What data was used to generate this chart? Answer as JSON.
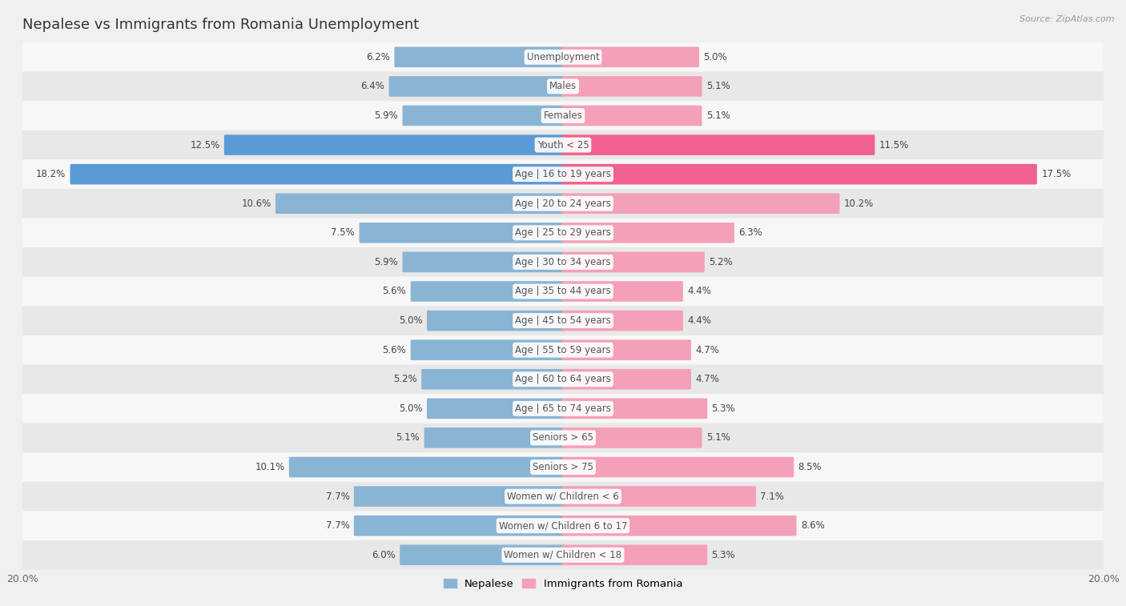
{
  "title": "Nepalese vs Immigrants from Romania Unemployment",
  "source": "Source: ZipAtlas.com",
  "categories": [
    "Unemployment",
    "Males",
    "Females",
    "Youth < 25",
    "Age | 16 to 19 years",
    "Age | 20 to 24 years",
    "Age | 25 to 29 years",
    "Age | 30 to 34 years",
    "Age | 35 to 44 years",
    "Age | 45 to 54 years",
    "Age | 55 to 59 years",
    "Age | 60 to 64 years",
    "Age | 65 to 74 years",
    "Seniors > 65",
    "Seniors > 75",
    "Women w/ Children < 6",
    "Women w/ Children 6 to 17",
    "Women w/ Children < 18"
  ],
  "nepalese": [
    6.2,
    6.4,
    5.9,
    12.5,
    18.2,
    10.6,
    7.5,
    5.9,
    5.6,
    5.0,
    5.6,
    5.2,
    5.0,
    5.1,
    10.1,
    7.7,
    7.7,
    6.0
  ],
  "romania": [
    5.0,
    5.1,
    5.1,
    11.5,
    17.5,
    10.2,
    6.3,
    5.2,
    4.4,
    4.4,
    4.7,
    4.7,
    5.3,
    5.1,
    8.5,
    7.1,
    8.6,
    5.3
  ],
  "nepalese_color": "#8ab4d4",
  "romania_color": "#f4a0b8",
  "nepalese_highlight_color": "#5b9bd5",
  "romania_highlight_color": "#f06090",
  "highlight_rows": [
    3,
    4
  ],
  "bg_color": "#f0f0f0",
  "row_color_even": "#f7f7f7",
  "row_color_odd": "#e8e8e8",
  "max_val": 20.0,
  "bar_height": 0.62,
  "legend_nepalese": "Nepalese",
  "legend_romania": "Immigrants from Romania",
  "label_color": "#555555",
  "value_color": "#444444",
  "title_color": "#333333",
  "source_color": "#999999"
}
